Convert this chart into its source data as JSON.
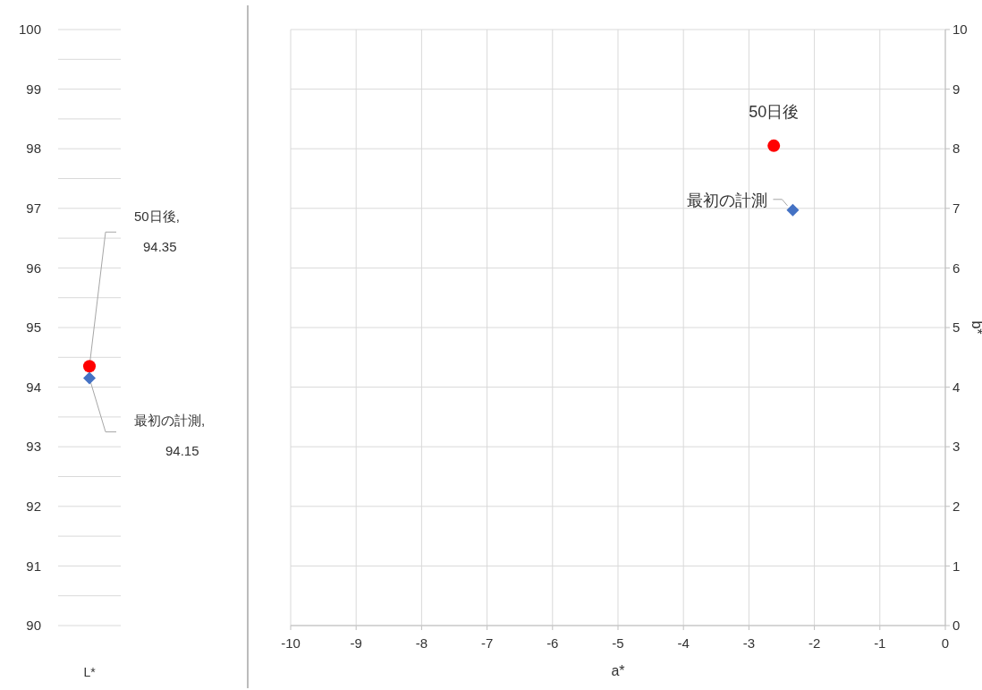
{
  "chart_data": [
    {
      "type": "scatter",
      "categories": [
        "L*"
      ],
      "ylim": [
        90,
        100
      ],
      "yticks": [
        90,
        {
          "value": 90.5,
          "label": null
        },
        91,
        {
          "value": 91.5,
          "label": null
        },
        92,
        {
          "value": 92.5,
          "label": null
        },
        93,
        {
          "value": 93.5,
          "label": null
        },
        94,
        {
          "value": 94.5,
          "label": null
        },
        95,
        {
          "value": 95.5,
          "label": null
        },
        96,
        {
          "value": 96.5,
          "label": null
        },
        97,
        {
          "value": 97.5,
          "label": null
        },
        98,
        {
          "value": 98.5,
          "label": null
        },
        99,
        {
          "value": 99.5,
          "label": null
        },
        100
      ],
      "grid": "y",
      "annotations": [
        "50日後, 94.35",
        "最初の計測, 94.15"
      ],
      "series": [
        {
          "color": "#ff0000",
          "marker": "circle",
          "values": [
            94.35
          ]
        },
        {
          "color": "#4472c4",
          "marker": "diamond",
          "values": [
            94.15
          ]
        }
      ]
    },
    {
      "type": "scatter",
      "xlabel": "a*",
      "ylabel": "b*",
      "xlim": [
        -10,
        0
      ],
      "xticks": [
        -10,
        -9,
        -8,
        -7,
        -6,
        -5,
        -4,
        -3,
        -2,
        -1,
        0
      ],
      "ylim": [
        0,
        10
      ],
      "yticks": [
        0,
        1,
        2,
        3,
        4,
        5,
        6,
        7,
        8,
        9,
        10
      ],
      "grid": true,
      "series": [
        {
          "name": "50日後",
          "color": "#ff0000",
          "marker": "circle",
          "x": [
            -2.62
          ],
          "values": [
            8.05
          ]
        },
        {
          "name": "最初の計測",
          "color": "#4472c4",
          "marker": "diamond",
          "x": [
            -2.33
          ],
          "values": [
            6.97
          ]
        }
      ]
    }
  ]
}
